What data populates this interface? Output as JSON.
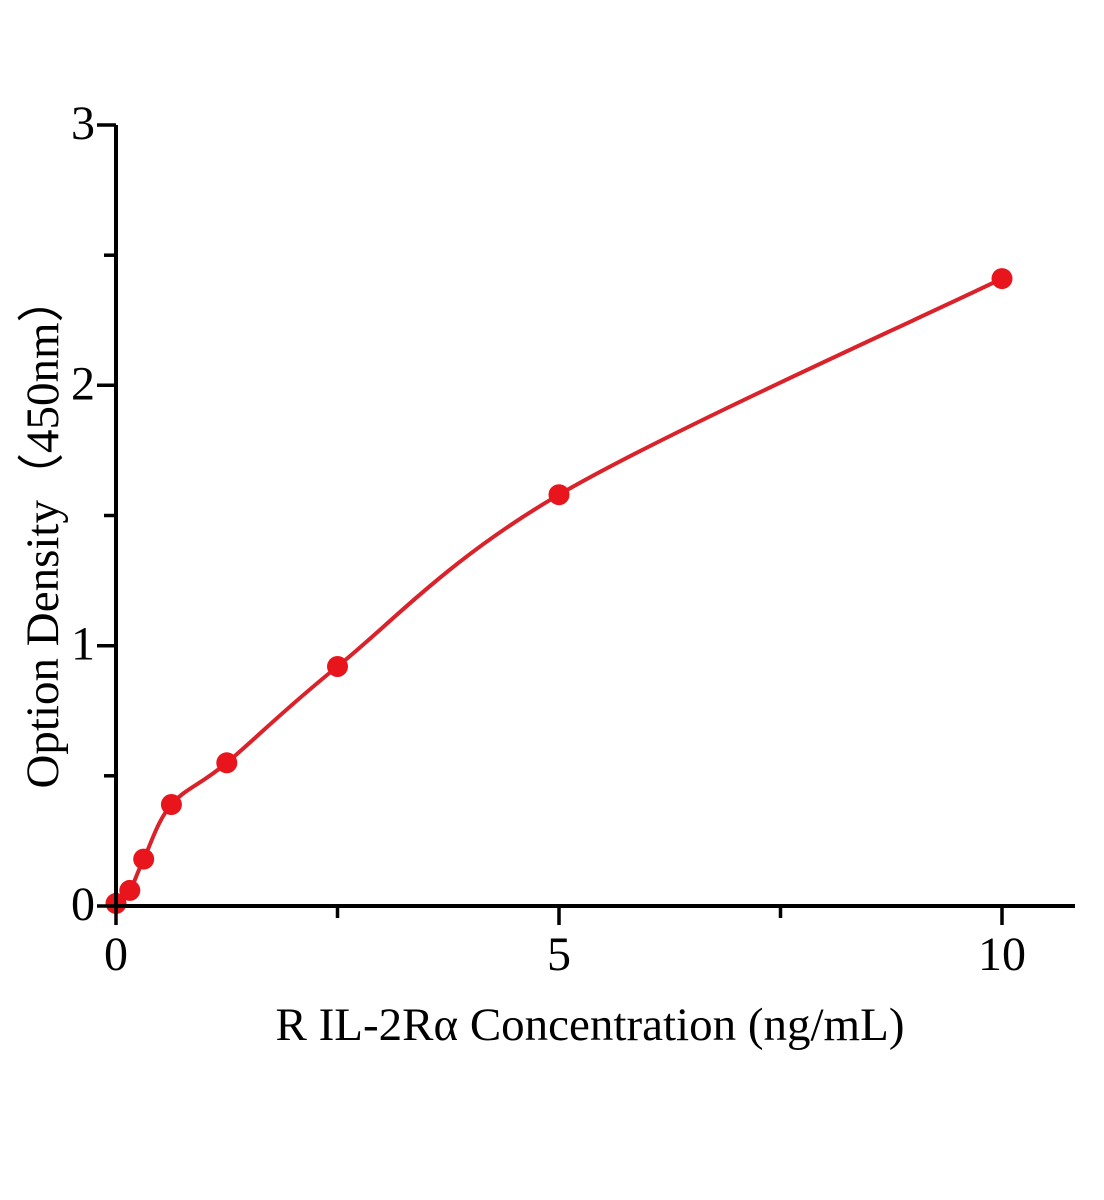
{
  "chart_data": {
    "type": "scatter",
    "title": "",
    "xlabel": "R IL-2Rα Concentration (ng/mL)",
    "ylabel": "Option Density（450nm）",
    "x": [
      0,
      0.156,
      0.313,
      0.625,
      1.25,
      2.5,
      5,
      10
    ],
    "y": [
      0.01,
      0.06,
      0.18,
      0.39,
      0.55,
      0.92,
      1.58,
      2.41
    ],
    "fit_curve": true,
    "marker": "circle",
    "grid": false,
    "legend": null,
    "xlim": [
      0,
      10.82
    ],
    "ylim": [
      0,
      3
    ],
    "x_major_ticks": {
      "values": [
        0,
        5,
        10
      ],
      "labels": [
        "0",
        "5",
        "10"
      ]
    },
    "x_minor_ticks": [
      2.5,
      7.5
    ],
    "y_major_ticks": {
      "values": [
        0,
        1,
        2,
        3
      ],
      "labels": [
        "0",
        "1",
        "2",
        "3"
      ]
    },
    "y_minor_ticks": [
      0.5,
      1.5,
      2.5
    ],
    "colors": {
      "marker": "#e8151c",
      "line": "#d9222a",
      "axis": "#000000",
      "background": "#ffffff"
    }
  }
}
